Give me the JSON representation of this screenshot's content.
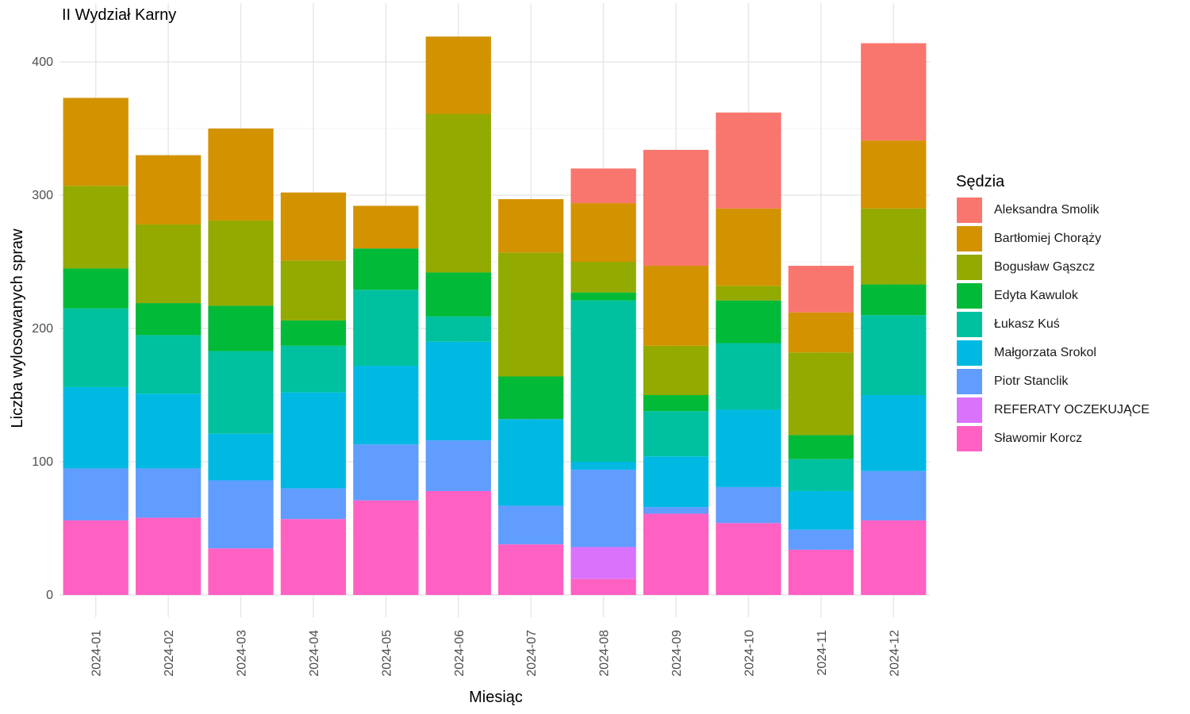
{
  "chart_data": {
    "type": "bar",
    "stacked": true,
    "title": "II Wydział Karny",
    "xlabel": "Miesiąc",
    "ylabel": "Liczba wylosowanych spraw",
    "ylim": [
      0,
      430
    ],
    "yticks": [
      0,
      100,
      200,
      300,
      400
    ],
    "grid": true,
    "legend_title": "Sędzia",
    "legend_position": "right",
    "categories": [
      "2024-01",
      "2024-02",
      "2024-03",
      "2024-04",
      "2024-05",
      "2024-06",
      "2024-07",
      "2024-08",
      "2024-09",
      "2024-10",
      "2024-11",
      "2024-12"
    ],
    "series": [
      {
        "name": "Aleksandra Smolik",
        "color": "#F8766D",
        "values": [
          0,
          0,
          0,
          0,
          0,
          0,
          0,
          26,
          87,
          72,
          35,
          73
        ]
      },
      {
        "name": "Bartłomiej Chorąży",
        "color": "#D39200",
        "values": [
          66,
          52,
          69,
          51,
          32,
          58,
          40,
          44,
          60,
          58,
          30,
          51
        ]
      },
      {
        "name": "Bogusław Gąszcz",
        "color": "#93AA00",
        "values": [
          62,
          59,
          64,
          45,
          0,
          119,
          93,
          23,
          37,
          11,
          62,
          57
        ]
      },
      {
        "name": "Edyta Kawulok",
        "color": "#00BA38",
        "values": [
          30,
          24,
          34,
          19,
          31,
          33,
          32,
          6,
          12,
          32,
          18,
          23
        ]
      },
      {
        "name": "Łukasz Kuś",
        "color": "#00C19F",
        "values": [
          59,
          44,
          62,
          35,
          57,
          19,
          0,
          121,
          34,
          50,
          24,
          60
        ]
      },
      {
        "name": "Małgorzata Srokol",
        "color": "#00B9E3",
        "values": [
          61,
          56,
          35,
          72,
          59,
          74,
          65,
          6,
          38,
          58,
          29,
          57
        ]
      },
      {
        "name": "Piotr Stanclik",
        "color": "#619CFF",
        "values": [
          39,
          37,
          51,
          23,
          42,
          38,
          29,
          58,
          5,
          27,
          15,
          37
        ]
      },
      {
        "name": "REFERATY OCZEKUJĄCE",
        "color": "#DB72FB",
        "values": [
          0,
          0,
          0,
          0,
          0,
          0,
          0,
          24,
          0,
          0,
          0,
          0
        ]
      },
      {
        "name": "Sławomir Korcz",
        "color": "#FF61C3",
        "values": [
          56,
          58,
          35,
          57,
          71,
          78,
          38,
          12,
          61,
          54,
          34,
          56
        ]
      }
    ]
  }
}
